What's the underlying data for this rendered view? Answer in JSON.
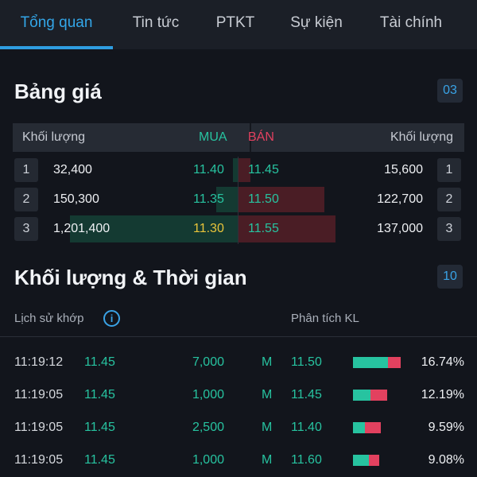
{
  "tabs": [
    "Tổng quan",
    "Tin tức",
    "PTKT",
    "Sự kiện",
    "Tài chính"
  ],
  "price_board": {
    "title": "Bảng giá",
    "badge": "03",
    "header": {
      "left_volume": "Khối lượng",
      "buy": "MUA",
      "sell": "BÁN",
      "right_volume": "Khối lượng"
    },
    "rows": [
      {
        "idx": "1",
        "buy_volume": "32,400",
        "buy_price": "11.40",
        "sell_price": "11.45",
        "sell_volume": "15,600",
        "idx_right": "1"
      },
      {
        "idx": "2",
        "buy_volume": "150,300",
        "buy_price": "11.35",
        "sell_price": "11.50",
        "sell_volume": "122,700",
        "idx_right": "2"
      },
      {
        "idx": "3",
        "buy_volume": "1,201,400",
        "buy_price": "11.30",
        "sell_price": "11.55",
        "sell_volume": "137,000",
        "idx_right": "3"
      }
    ]
  },
  "trades": {
    "title": "Khối lượng & Thời gian",
    "badge": "10",
    "history_label": "Lịch sử khớp",
    "analysis_label": "Phân tích KL",
    "history": [
      {
        "time": "11:19:12",
        "price": "11.45",
        "volume": "7,000",
        "side": "M"
      },
      {
        "time": "11:19:05",
        "price": "11.45",
        "volume": "1,000",
        "side": "M"
      },
      {
        "time": "11:19:05",
        "price": "11.45",
        "volume": "2,500",
        "side": "M"
      },
      {
        "time": "11:19:05",
        "price": "11.45",
        "volume": "1,000",
        "side": "M"
      }
    ],
    "analysis": [
      {
        "price": "11.50",
        "percent": "16.74%",
        "buy_share": 0.74
      },
      {
        "price": "11.45",
        "percent": "12.19%",
        "buy_share": 0.52
      },
      {
        "price": "11.40",
        "percent": "9.59%",
        "buy_share": 0.4
      },
      {
        "price": "11.60",
        "percent": "9.08%",
        "buy_share": 0.62
      }
    ]
  },
  "colors": {
    "accent": "#2f9de0",
    "buy_green": "#27c3a0",
    "sell_red": "#e2415f",
    "ref_yellow": "#e8c43a"
  }
}
